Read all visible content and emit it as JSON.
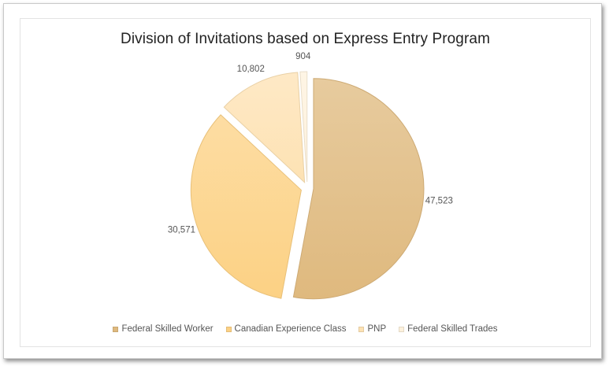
{
  "chart_data": {
    "type": "pie",
    "title": "Division of Invitations based on Express Entry Program",
    "slices": [
      {
        "label": "Federal Skilled Worker",
        "value": 47523,
        "value_label": "47,523",
        "color": "#dfb97e"
      },
      {
        "label": "Canadian Experience Class",
        "value": 30571,
        "value_label": "30,571",
        "color": "#fcd184"
      },
      {
        "label": "PNP",
        "value": 10802,
        "value_label": "10,802",
        "color": "#fde2b3"
      },
      {
        "label": "Federal Skilled Trades",
        "value": 904,
        "value_label": "904",
        "color": "#fdf1dc"
      }
    ],
    "legend": "bottom",
    "exploded": true
  }
}
